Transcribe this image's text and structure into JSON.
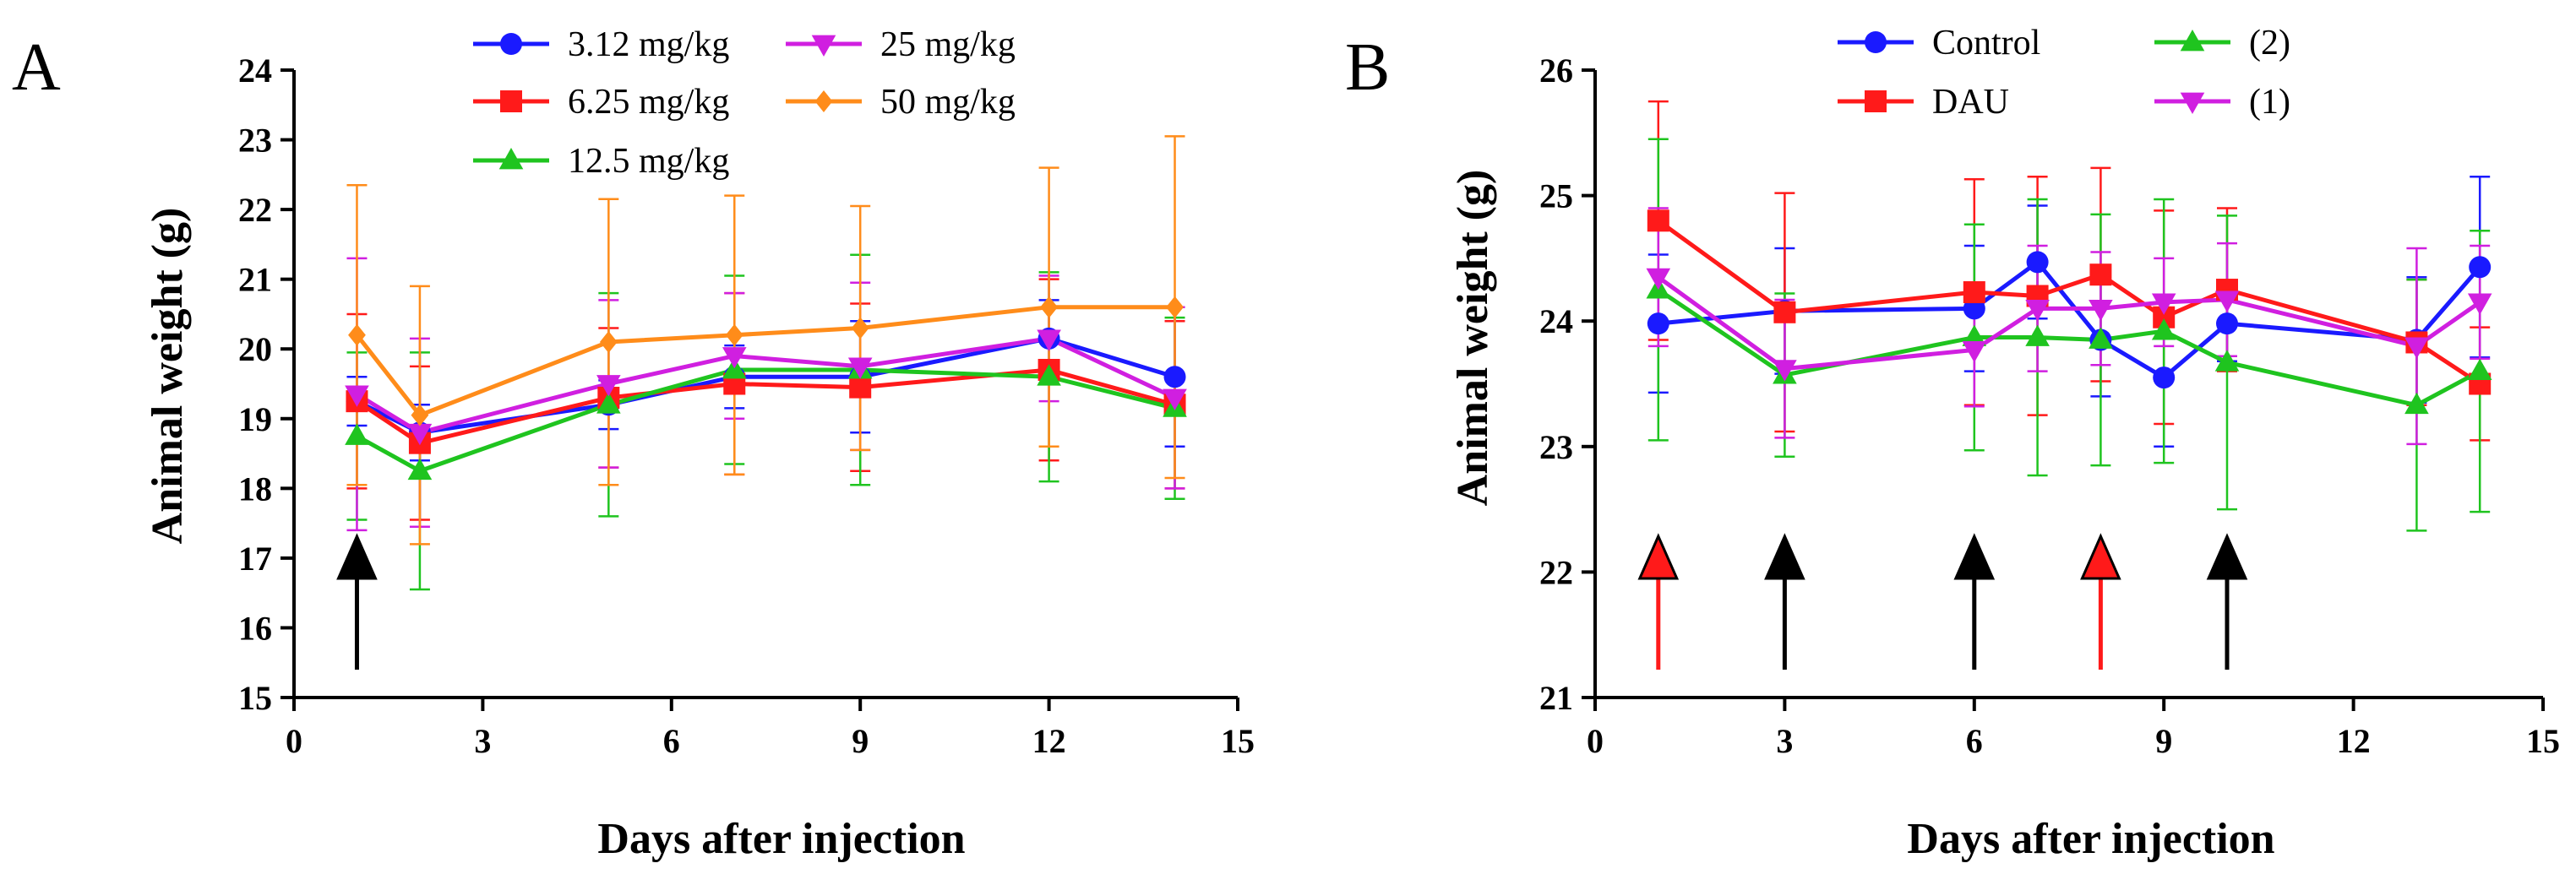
{
  "chart_data": [
    {
      "type": "line",
      "panel": "A",
      "xlabel": "Days after injection",
      "ylabel": "Animal weight (g)",
      "xlim": [
        0,
        15
      ],
      "ylim": [
        15,
        24
      ],
      "xticks": [
        0,
        3,
        6,
        9,
        12,
        15
      ],
      "yticks": [
        15,
        16,
        17,
        18,
        19,
        20,
        21,
        22,
        23,
        24
      ],
      "x": [
        1,
        2,
        5,
        7,
        9,
        12,
        14
      ],
      "legend_position": "top",
      "series": [
        {
          "name": "3.12 mg/kg",
          "color": "#1a1aff",
          "marker": "circle",
          "values": [
            19.25,
            18.8,
            19.2,
            19.6,
            19.6,
            20.15,
            19.6
          ],
          "errors": [
            0.35,
            0.4,
            0.35,
            0.45,
            0.8,
            0.55,
            1.0
          ]
        },
        {
          "name": "6.25 mg/kg",
          "color": "#ff1a1a",
          "marker": "square",
          "values": [
            19.25,
            18.65,
            19.3,
            19.5,
            19.45,
            19.7,
            19.2
          ],
          "errors": [
            1.25,
            1.1,
            1.0,
            1.3,
            1.2,
            1.3,
            1.2
          ]
        },
        {
          "name": "12.5 mg/kg",
          "color": "#1fc41f",
          "marker": "triangle-up",
          "values": [
            18.75,
            18.25,
            19.2,
            19.7,
            19.7,
            19.6,
            19.15
          ],
          "errors": [
            1.2,
            1.7,
            1.6,
            1.35,
            1.65,
            1.5,
            1.3
          ]
        },
        {
          "name": "25 mg/kg",
          "color": "#d01fe0",
          "marker": "triangle-down",
          "values": [
            19.35,
            18.8,
            19.5,
            19.9,
            19.75,
            20.15,
            19.3
          ],
          "errors": [
            1.95,
            1.35,
            1.2,
            0.9,
            1.2,
            0.9,
            1.3
          ]
        },
        {
          "name": "50 mg/kg",
          "color": "#ff8c1a",
          "marker": "diamond",
          "values": [
            20.2,
            19.05,
            20.1,
            20.2,
            20.3,
            20.6,
            20.6
          ],
          "errors": [
            2.15,
            1.85,
            2.05,
            2.0,
            1.75,
            2.0,
            2.45
          ]
        }
      ],
      "arrows": [
        {
          "x": 1,
          "color": "#000000"
        }
      ]
    },
    {
      "type": "line",
      "panel": "B",
      "xlabel": "Days after injection",
      "ylabel": "Animal weight (g)",
      "xlim": [
        0,
        15
      ],
      "ylim": [
        21,
        26
      ],
      "xticks": [
        0,
        3,
        6,
        9,
        12,
        15
      ],
      "yticks": [
        21,
        22,
        23,
        24,
        25,
        26
      ],
      "x": [
        1,
        3,
        6,
        7,
        8,
        9,
        10,
        13,
        14
      ],
      "legend_position": "top",
      "series": [
        {
          "name": "Control",
          "color": "#1a1aff",
          "marker": "circle",
          "values": [
            23.98,
            24.08,
            24.1,
            24.47,
            23.85,
            23.55,
            23.98,
            23.85,
            24.43
          ],
          "errors": [
            0.55,
            0.5,
            0.5,
            0.45,
            0.45,
            0.55,
            0.3,
            0.5,
            0.72
          ]
        },
        {
          "name": "DAU",
          "color": "#ff1a1a",
          "marker": "square",
          "values": [
            24.8,
            24.07,
            24.23,
            24.2,
            24.37,
            24.03,
            24.25,
            23.83,
            23.5
          ],
          "errors": [
            0.95,
            0.95,
            0.9,
            0.95,
            0.85,
            0.85,
            0.65,
            0.5,
            0.45
          ]
        },
        {
          "name": "(2)",
          "color": "#1fc41f",
          "marker": "triangle-up",
          "values": [
            24.25,
            23.57,
            23.87,
            23.87,
            23.85,
            23.92,
            23.67,
            23.33,
            23.6
          ],
          "errors": [
            1.2,
            0.65,
            0.9,
            1.1,
            1.0,
            1.05,
            1.17,
            1.0,
            1.12
          ]
        },
        {
          "name": "(1)",
          "color": "#d01fe0",
          "marker": "triangle-down",
          "values": [
            24.35,
            23.62,
            23.77,
            24.1,
            24.1,
            24.15,
            24.17,
            23.8,
            24.15
          ],
          "errors": [
            0.55,
            0.55,
            0.45,
            0.5,
            0.45,
            0.35,
            0.45,
            0.78,
            0.45
          ]
        }
      ],
      "arrows": [
        {
          "x": 1,
          "color": "#ff1a1a"
        },
        {
          "x": 3,
          "color": "#000000"
        },
        {
          "x": 6,
          "color": "#000000"
        },
        {
          "x": 8,
          "color": "#ff1a1a"
        },
        {
          "x": 10,
          "color": "#000000"
        }
      ]
    }
  ]
}
